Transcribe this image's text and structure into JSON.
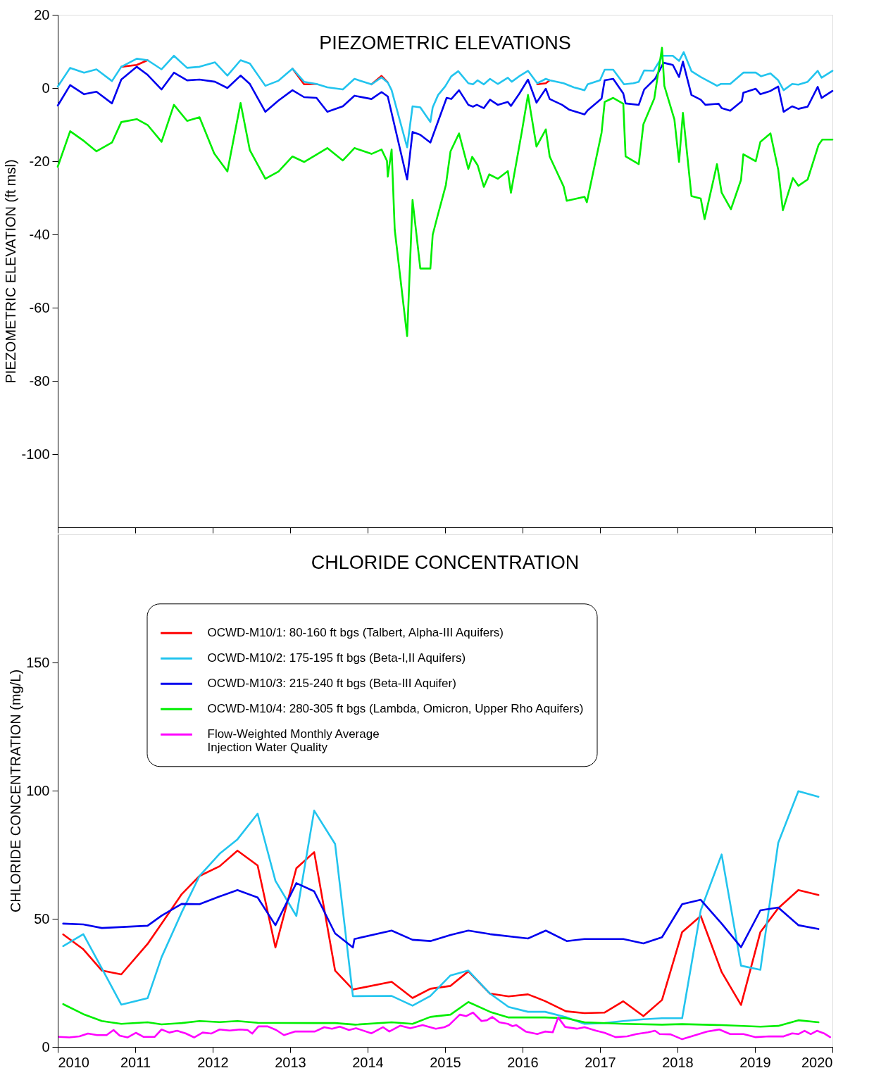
{
  "chart_data": [
    {
      "type": "line",
      "title": "PIEZOMETRIC ELEVATIONS",
      "ylabel": "PIEZOMETRIC ELEVATION (ft msl)",
      "xlim": [
        2010,
        2020
      ],
      "xticks": [
        2010,
        2011,
        2012,
        2013,
        2014,
        2015,
        2016,
        2017,
        2018,
        2019,
        2020
      ],
      "ylim": [
        -120,
        20
      ],
      "yticks": [
        20,
        0,
        -20,
        -40,
        -60,
        -80,
        -100
      ],
      "tick_labels": "y",
      "series": [
        {
          "color": "#ff0000",
          "x": [
            2010.82,
            2011.02,
            2011.16,
            null,
            2013.03,
            2013.18,
            2013.34,
            null,
            2014.05,
            2014.18,
            2014.26,
            null,
            null,
            2016.19,
            2016.3,
            2016.35
          ],
          "values": [
            5.8,
            6.3,
            7.6,
            null,
            5.3,
            1.0,
            1.1,
            null,
            1.0,
            3.3,
            1.5,
            null,
            null,
            1.0,
            1.3,
            2.1
          ]
        },
        {
          "color": "#22c4ee",
          "x": [
            2010.0,
            2010.16,
            2010.34,
            2010.5,
            2010.7,
            2010.82,
            2011.02,
            2011.16,
            2011.34,
            2011.5,
            2011.67,
            2011.83,
            2012.03,
            2012.19,
            2012.36,
            2012.48,
            2012.68,
            2012.85,
            2013.03,
            2013.18,
            2013.34,
            2013.48,
            2013.68,
            2013.83,
            2014.05,
            2014.18,
            2014.26,
            2014.31,
            2014.51,
            2014.58,
            2014.68,
            2014.81,
            2014.84,
            2014.91,
            2015.0,
            2015.08,
            2015.17,
            2015.3,
            2015.36,
            2015.42,
            2015.5,
            2015.58,
            2015.68,
            2015.81,
            2015.86,
            2015.97,
            2016.07,
            2016.19,
            2016.3,
            2016.35,
            2016.53,
            2016.66,
            2016.8,
            2016.84,
            2017.0,
            2017.06,
            2017.17,
            2017.31,
            2017.43,
            2017.5,
            2017.57,
            2017.69,
            2017.81,
            2017.94,
            2018.02,
            2018.08,
            2018.18,
            2018.3,
            2018.38,
            2018.51,
            2018.56,
            2018.68,
            2018.85,
            2019.01,
            2019.08,
            2019.2,
            2019.3,
            2019.37,
            2019.48,
            2019.56,
            2019.68,
            2019.81,
            2019.86,
            2020.0
          ],
          "values": [
            0.4,
            5.5,
            4.2,
            5.1,
            1.9,
            5.8,
            8.0,
            7.6,
            5.1,
            8.8,
            5.5,
            5.8,
            7.0,
            3.4,
            7.6,
            6.7,
            0.6,
            2.0,
            5.3,
            1.7,
            1.1,
            0.2,
            -0.4,
            2.5,
            1.0,
            2.9,
            1.5,
            -0.6,
            -16.2,
            -5.0,
            -5.3,
            -9.3,
            -5.3,
            -1.9,
            0.4,
            3.2,
            4.6,
            1.3,
            1.0,
            2.1,
            1.0,
            2.5,
            1.1,
            2.8,
            1.7,
            3.4,
            4.7,
            1.3,
            2.5,
            2.1,
            1.3,
            0.2,
            -0.6,
            1.0,
            2.1,
            5.0,
            5.0,
            1.0,
            1.3,
            1.7,
            4.8,
            4.7,
            8.8,
            8.8,
            7.4,
            9.8,
            4.6,
            3.0,
            2.1,
            0.6,
            1.1,
            1.1,
            4.2,
            4.2,
            3.2,
            4.0,
            2.1,
            -0.6,
            1.1,
            0.9,
            1.7,
            4.7,
            2.8,
            4.7
          ]
        },
        {
          "color": "#0000ee",
          "x": [
            2010.0,
            2010.16,
            2010.34,
            2010.5,
            2010.7,
            2010.82,
            2011.02,
            2011.16,
            2011.34,
            2011.5,
            2011.67,
            2011.83,
            2012.03,
            2012.19,
            2012.36,
            2012.48,
            2012.68,
            2012.85,
            2013.03,
            2013.18,
            2013.34,
            2013.48,
            2013.68,
            2013.83,
            2014.05,
            2014.18,
            2014.26,
            2014.51,
            2014.58,
            2014.68,
            2014.81,
            2015.02,
            2015.08,
            2015.18,
            2015.3,
            2015.36,
            2015.41,
            2015.5,
            2015.58,
            2015.68,
            2015.81,
            2015.85,
            2015.96,
            2016.07,
            2016.18,
            2016.3,
            2016.35,
            2016.51,
            2016.6,
            2016.8,
            2016.84,
            2017.02,
            2017.06,
            2017.17,
            2017.3,
            2017.33,
            2017.5,
            2017.57,
            2017.71,
            2017.82,
            2017.94,
            2018.02,
            2018.07,
            2018.18,
            2018.3,
            2018.36,
            2018.53,
            2018.57,
            2018.68,
            2018.83,
            2018.85,
            2019.01,
            2019.07,
            2019.2,
            2019.3,
            2019.37,
            2019.48,
            2019.56,
            2019.68,
            2019.81,
            2019.86,
            2020.0
          ],
          "values": [
            -4.8,
            0.8,
            -1.7,
            -1.0,
            -4.2,
            2.3,
            5.8,
            3.6,
            -0.4,
            4.2,
            2.1,
            2.3,
            1.7,
            0.0,
            3.4,
            1.1,
            -6.5,
            -3.4,
            -0.6,
            -2.5,
            -2.7,
            -6.5,
            -5.0,
            -2.1,
            -3.0,
            -1.1,
            -2.3,
            -25.0,
            -12.0,
            -12.8,
            -14.9,
            -2.7,
            -3.0,
            -0.6,
            -4.6,
            -5.1,
            -4.6,
            -5.5,
            -3.2,
            -4.6,
            -3.8,
            -4.9,
            -1.5,
            2.3,
            -4.0,
            -0.2,
            -3.0,
            -4.6,
            -5.9,
            -7.2,
            -6.1,
            -2.9,
            2.1,
            2.5,
            -1.5,
            -4.2,
            -4.6,
            -0.4,
            2.5,
            6.9,
            6.3,
            3.0,
            7.2,
            -1.9,
            -3.2,
            -4.6,
            -4.3,
            -5.5,
            -6.2,
            -3.6,
            -1.3,
            -0.2,
            -1.7,
            -0.8,
            0.4,
            -6.5,
            -5.0,
            -5.7,
            -5.1,
            0.3,
            -2.7,
            -0.8
          ]
        },
        {
          "color": "#00ee00",
          "x": [
            2010.0,
            2010.16,
            2010.34,
            2010.5,
            2010.7,
            2010.82,
            2011.02,
            2011.16,
            2011.34,
            2011.5,
            2011.67,
            2011.83,
            2012.02,
            2012.19,
            2012.36,
            2012.48,
            2012.68,
            2012.85,
            2013.03,
            2013.18,
            2013.34,
            2013.48,
            2013.68,
            2013.83,
            2014.05,
            2014.18,
            2014.25,
            2014.26,
            2014.31,
            2014.35,
            2014.51,
            2014.58,
            2014.68,
            2014.81,
            2014.84,
            2014.9,
            2015.01,
            2015.07,
            2015.18,
            2015.3,
            2015.35,
            2015.42,
            2015.5,
            2015.57,
            2015.68,
            2015.81,
            2015.85,
            2015.99,
            2016.07,
            2016.18,
            2016.3,
            2016.35,
            2016.53,
            2016.57,
            2016.8,
            2016.83,
            2017.02,
            2017.06,
            2017.17,
            2017.3,
            2017.33,
            2017.5,
            2017.56,
            2017.7,
            2017.8,
            2017.83,
            2017.96,
            2018.02,
            2018.07,
            2018.18,
            2018.3,
            2018.35,
            2018.51,
            2018.57,
            2018.69,
            2018.82,
            2018.85,
            2019.01,
            2019.07,
            2019.2,
            2019.3,
            2019.36,
            2019.49,
            2019.56,
            2019.68,
            2019.82,
            2019.87,
            2020.0
          ],
          "values": [
            -21.5,
            -11.8,
            -14.5,
            -17.3,
            -14.9,
            -9.3,
            -8.5,
            -10.1,
            -14.7,
            -4.6,
            -9.0,
            -8.0,
            -17.9,
            -22.8,
            -4.1,
            -17.0,
            -24.8,
            -22.8,
            -18.7,
            -20.2,
            -18.2,
            -16.4,
            -19.8,
            -16.4,
            -18.0,
            -16.8,
            -19.9,
            -24.2,
            -16.8,
            -38.7,
            -67.8,
            -30.6,
            -49.3,
            -49.3,
            -40.1,
            -35.2,
            -26.5,
            -17.3,
            -12.4,
            -22.1,
            -18.8,
            -21.1,
            -27.0,
            -23.6,
            -24.8,
            -22.7,
            -28.6,
            -12.0,
            -1.9,
            -16.0,
            -11.3,
            -18.7,
            -26.9,
            -30.8,
            -29.7,
            -31.2,
            -12.2,
            -3.8,
            -2.7,
            -4.3,
            -18.7,
            -20.8,
            -9.9,
            -2.9,
            11.0,
            0.6,
            -8.6,
            -20.2,
            -6.8,
            -29.5,
            -30.2,
            -35.8,
            -20.8,
            -28.6,
            -33.1,
            -25.1,
            -18.1,
            -20.0,
            -14.7,
            -12.4,
            -22.3,
            -33.4,
            -24.6,
            -26.7,
            -25.0,
            -15.6,
            -14.1,
            -14.1
          ]
        }
      ]
    },
    {
      "type": "line",
      "title": "CHLORIDE CONCENTRATION",
      "ylabel": "CHLORIDE CONCENTRATION (mg/L)",
      "xlim": [
        2010,
        2020
      ],
      "xticks": [
        2010,
        2011,
        2012,
        2013,
        2014,
        2015,
        2016,
        2017,
        2018,
        2019,
        2020
      ],
      "ylim": [
        0,
        200
      ],
      "yticks": [
        0,
        50,
        100,
        150
      ],
      "legend": "top",
      "series": [
        {
          "name": "OCWD-M10/1: 80-160 ft bgs (Talbert, Alpha-III Aquifers)",
          "color": "#ff0000",
          "x": [
            2010.07,
            2010.33,
            2010.57,
            2010.82,
            2011.16,
            2011.34,
            2011.6,
            2011.83,
            2012.09,
            2012.32,
            2012.58,
            2012.81,
            2013.08,
            2013.31,
            2013.58,
            2013.81,
            2014.31,
            2014.58,
            2014.81,
            2015.07,
            2015.3,
            2015.58,
            2015.82,
            2016.07,
            2016.29,
            2016.56,
            2016.8,
            2017.06,
            2017.3,
            2017.56,
            2017.8,
            2018.06,
            2018.3,
            2018.57,
            2018.82,
            2019.07,
            2019.3,
            2019.56,
            2019.82
          ],
          "values": [
            43.9,
            38.1,
            29.8,
            28.3,
            40.2,
            48.1,
            59.6,
            66.7,
            70.5,
            76.6,
            70.8,
            38.8,
            69.7,
            76.0,
            29.8,
            22.4,
            25.4,
            19.1,
            22.7,
            23.8,
            29.5,
            20.8,
            19.7,
            20.5,
            17.9,
            13.9,
            13.2,
            13.4,
            17.8,
            12.0,
            18.3,
            44.8,
            51.1,
            29.2,
            16.4,
            44.8,
            54.1,
            61.2,
            59.3
          ]
        },
        {
          "name": "OCWD-M10/2: 175-195 ft bgs (Beta-I,II Aquifers)",
          "color": "#22c4ee",
          "x": [
            2010.07,
            2010.33,
            2010.57,
            2010.82,
            2011.16,
            2011.34,
            2011.6,
            2011.83,
            2012.09,
            2012.32,
            2012.58,
            2012.81,
            2013.08,
            2013.31,
            2013.58,
            2013.81,
            2014.31,
            2014.58,
            2014.81,
            2015.07,
            2015.3,
            2015.58,
            2015.82,
            2016.07,
            2016.29,
            2016.56,
            2016.8,
            2017.06,
            2017.3,
            2017.56,
            2017.8,
            2018.06,
            2018.3,
            2018.57,
            2018.82,
            2019.07,
            2019.3,
            2019.56,
            2019.82
          ],
          "values": [
            39.3,
            44.0,
            30.6,
            16.5,
            19.0,
            35.0,
            52.5,
            66.7,
            75.4,
            81.0,
            91.0,
            64.8,
            51.1,
            92.2,
            79.2,
            19.8,
            19.9,
            16.1,
            19.9,
            27.9,
            29.8,
            20.8,
            15.6,
            13.7,
            13.7,
            11.6,
            9.0,
            9.3,
            10.1,
            10.8,
            11.2,
            11.2,
            53.3,
            75.1,
            31.7,
            30.1,
            79.6,
            99.8,
            97.6
          ]
        },
        {
          "name": "OCWD-M10/3: 215-240 ft bgs (Beta-III Aquifer)",
          "color": "#0000ee",
          "x": [
            2010.07,
            2010.33,
            2010.57,
            2011.16,
            2011.34,
            2011.6,
            2011.83,
            2012.09,
            2012.32,
            2012.58,
            2012.81,
            2013.08,
            2013.31,
            2013.58,
            2013.81,
            2013.83,
            2014.31,
            2014.58,
            2014.81,
            2015.07,
            2015.3,
            2015.58,
            2016.07,
            2016.3,
            2016.57,
            2016.8,
            2017.3,
            2017.56,
            2017.8,
            2018.06,
            2018.3,
            2018.57,
            2018.82,
            2019.07,
            2019.3,
            2019.56,
            2019.82
          ],
          "values": [
            48.1,
            47.8,
            46.4,
            47.3,
            51.2,
            55.8,
            55.7,
            58.7,
            61.2,
            58.3,
            47.5,
            63.9,
            60.7,
            44.3,
            38.8,
            42.1,
            45.4,
            41.8,
            41.3,
            43.7,
            45.4,
            44.0,
            42.3,
            45.4,
            41.3,
            42.1,
            42.1,
            40.4,
            42.8,
            55.7,
            57.4,
            48.1,
            38.9,
            53.3,
            54.4,
            47.5,
            46.0
          ]
        },
        {
          "name": "OCWD-M10/4: 280-305 ft bgs (Lambda, Omicron, Upper Rho Aquifers)",
          "color": "#00ee00",
          "x": [
            2010.07,
            2010.33,
            2010.57,
            2010.82,
            2011.16,
            2011.34,
            2011.6,
            2011.83,
            2012.09,
            2012.32,
            2012.58,
            2013.31,
            2013.58,
            2013.84,
            2014.31,
            2014.58,
            2014.81,
            2015.07,
            2015.3,
            2015.58,
            2015.82,
            2016.29,
            2016.56,
            2016.8,
            2017.3,
            2017.8,
            2018.06,
            2018.57,
            2019.07,
            2019.3,
            2019.56,
            2019.82
          ],
          "values": [
            16.7,
            12.8,
            10.1,
            9.0,
            9.6,
            8.8,
            9.3,
            10.1,
            9.7,
            10.1,
            9.4,
            9.3,
            9.3,
            8.7,
            9.6,
            9.0,
            11.7,
            12.6,
            17.5,
            13.7,
            11.5,
            11.5,
            11.2,
            9.6,
            9.0,
            8.7,
            8.9,
            8.5,
            7.9,
            8.2,
            10.4,
            9.6
          ]
        },
        {
          "name": "Flow-Weighted Monthly Average\nInjection Water Quality",
          "color": "#ff00ff",
          "x": [
            2010.02,
            2010.15,
            2010.28,
            2010.39,
            2010.51,
            2010.63,
            2010.72,
            2010.8,
            2010.9,
            2011.01,
            2011.11,
            2011.25,
            2011.34,
            2011.44,
            2011.54,
            2011.65,
            2011.76,
            2011.87,
            2011.98,
            2012.09,
            2012.22,
            2012.35,
            2012.45,
            2012.51,
            2012.59,
            2012.71,
            2012.82,
            2012.92,
            2013.06,
            2013.19,
            2013.32,
            2013.44,
            2013.54,
            2013.64,
            2013.76,
            2013.85,
            2014.05,
            2014.2,
            2014.28,
            2014.42,
            2014.55,
            2014.71,
            2014.88,
            2014.99,
            2015.05,
            2015.19,
            2015.27,
            2015.36,
            2015.47,
            2015.54,
            2015.61,
            2015.7,
            2015.81,
            2015.87,
            2015.92,
            2016.04,
            2016.19,
            2016.29,
            2016.39,
            2016.46,
            2016.55,
            2016.7,
            2016.8,
            2016.95,
            2017.06,
            2017.2,
            2017.35,
            2017.47,
            2017.62,
            2017.71,
            2017.77,
            2017.91,
            2018.06,
            2018.21,
            2018.38,
            2018.54,
            2018.68,
            2018.85,
            2019.01,
            2019.18,
            2019.37,
            2019.48,
            2019.56,
            2019.64,
            2019.72,
            2019.8,
            2019.89,
            2019.97
          ],
          "values": [
            3.9,
            3.7,
            4.1,
            5.2,
            4.6,
            4.6,
            6.6,
            4.4,
            3.7,
            5.5,
            3.9,
            3.9,
            6.8,
            5.6,
            6.3,
            5.3,
            3.7,
            5.6,
            5.2,
            6.8,
            6.4,
            6.8,
            6.6,
            5.2,
            8.0,
            8.0,
            6.6,
            4.6,
            6.0,
            6.0,
            6.0,
            7.7,
            7.1,
            7.9,
            6.6,
            7.3,
            5.3,
            7.7,
            6.0,
            8.3,
            7.3,
            8.5,
            7.1,
            7.7,
            8.5,
            12.6,
            12.0,
            13.4,
            10.1,
            10.4,
            11.7,
            9.6,
            9.0,
            8.1,
            8.5,
            6.0,
            5.0,
            6.0,
            5.7,
            11.5,
            7.8,
            7.1,
            7.7,
            6.3,
            5.5,
            3.8,
            4.1,
            5.0,
            5.7,
            6.3,
            5.0,
            4.9,
            3.0,
            4.4,
            6.0,
            6.8,
            5.0,
            5.0,
            3.8,
            4.1,
            4.1,
            5.3,
            5.0,
            6.3,
            5.0,
            6.3,
            5.3,
            3.8
          ]
        }
      ]
    }
  ]
}
